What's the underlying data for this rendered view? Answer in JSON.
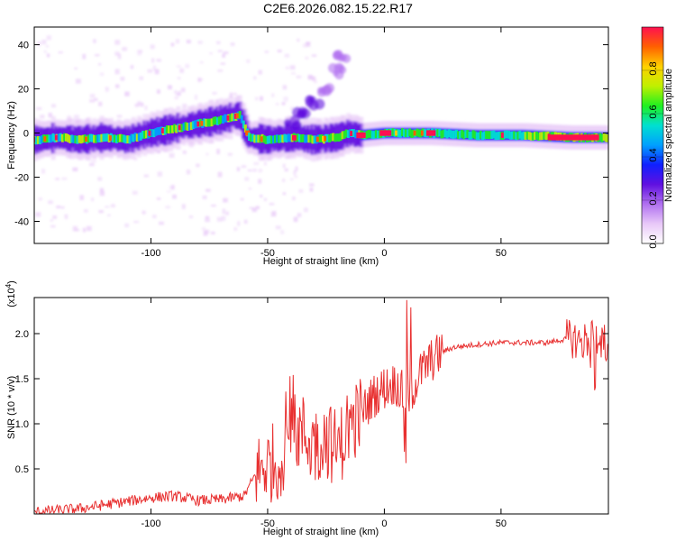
{
  "title": "C2E6.2026.082.15.22.R17",
  "colors": {
    "snr_line": "#e83030",
    "axis": "#000000",
    "background": "#ffffff"
  },
  "chart_data": [
    {
      "type": "heatmap",
      "xlabel": "Height of straight line (km)",
      "ylabel": "Frequency (Hz)",
      "xlim": [
        -150,
        96
      ],
      "ylim": [
        -50,
        48
      ],
      "xticks": [
        -100,
        -50,
        0,
        50
      ],
      "xtick_labels": [
        "-100",
        "-50",
        "0",
        "50"
      ],
      "yticks": [
        -40,
        -20,
        0,
        20,
        40
      ],
      "ytick_labels": [
        "-40",
        "-20",
        "0",
        "20",
        "40"
      ],
      "colorbar": {
        "label": "Normalized spectral amplitude",
        "range": [
          0,
          1
        ],
        "ticks": [
          0.0,
          0.2,
          0.4,
          0.6,
          0.8
        ],
        "tick_labels": [
          "0.0",
          "0.2",
          "0.4",
          "0.6",
          "0.8"
        ],
        "colormap": [
          "#ffffff",
          "#e8c8f8",
          "#b070f0",
          "#6010e0",
          "#1020ff",
          "#00a0ff",
          "#00e0d0",
          "#20f020",
          "#c0f000",
          "#ffd000",
          "#ff6000",
          "#ff1050"
        ]
      },
      "ridge": [
        [
          -148,
          -3
        ],
        [
          -140,
          -2
        ],
        [
          -130,
          -3
        ],
        [
          -120,
          -2
        ],
        [
          -110,
          -3
        ],
        [
          -100,
          0
        ],
        [
          -90,
          2
        ],
        [
          -80,
          4
        ],
        [
          -70,
          6
        ],
        [
          -62,
          8
        ],
        [
          -58,
          -2
        ],
        [
          -50,
          -3
        ],
        [
          -40,
          -2
        ],
        [
          -30,
          -3
        ],
        [
          -20,
          -2
        ],
        [
          -15,
          0
        ],
        [
          -10,
          -1
        ],
        [
          0,
          0
        ],
        [
          10,
          0
        ],
        [
          20,
          0
        ],
        [
          40,
          -1
        ],
        [
          60,
          -1
        ],
        [
          80,
          -2
        ],
        [
          95,
          -2
        ]
      ],
      "branch": [
        [
          -40,
          4
        ],
        [
          -35,
          8
        ],
        [
          -30,
          14
        ],
        [
          -25,
          20
        ],
        [
          -20,
          28
        ],
        [
          -18,
          34
        ]
      ]
    },
    {
      "type": "line",
      "xlabel": "Height of straight line (km)",
      "ylabel": "SNR (10 * v/v)",
      "y_multiplier": "(x10^4)",
      "xlim": [
        -150,
        96
      ],
      "ylim": [
        0,
        2.4
      ],
      "xticks": [
        -100,
        -50,
        0,
        50
      ],
      "xtick_labels": [
        "-100",
        "-50",
        "0",
        "50"
      ],
      "yticks": [
        0.5,
        1.0,
        1.5,
        2.0
      ],
      "ytick_labels": [
        "0.5",
        "1.0",
        "1.5",
        "2.0"
      ],
      "series": [
        {
          "values_envelope": [
            [
              -150,
              0.02
            ],
            [
              -140,
              0.04
            ],
            [
              -130,
              0.06
            ],
            [
              -120,
              0.1
            ],
            [
              -110,
              0.14
            ],
            [
              -100,
              0.18
            ],
            [
              -90,
              0.2
            ],
            [
              -80,
              0.15
            ],
            [
              -70,
              0.16
            ],
            [
              -60,
              0.2
            ],
            [
              -55,
              0.45
            ],
            [
              -50,
              0.55
            ],
            [
              -45,
              0.6
            ],
            [
              -40,
              0.9
            ],
            [
              -35,
              0.9
            ],
            [
              -30,
              0.75
            ],
            [
              -25,
              0.85
            ],
            [
              -20,
              0.7
            ],
            [
              -15,
              1.0
            ],
            [
              -10,
              1.1
            ],
            [
              -5,
              1.3
            ],
            [
              0,
              1.4
            ],
            [
              5,
              1.45
            ],
            [
              10,
              1.25
            ],
            [
              15,
              1.55
            ],
            [
              20,
              1.7
            ],
            [
              25,
              1.8
            ],
            [
              30,
              1.85
            ],
            [
              40,
              1.88
            ],
            [
              50,
              1.9
            ],
            [
              60,
              1.9
            ],
            [
              70,
              1.9
            ],
            [
              80,
              1.95
            ],
            [
              85,
              1.9
            ],
            [
              90,
              2.0
            ],
            [
              95,
              1.9
            ]
          ]
        }
      ]
    }
  ]
}
